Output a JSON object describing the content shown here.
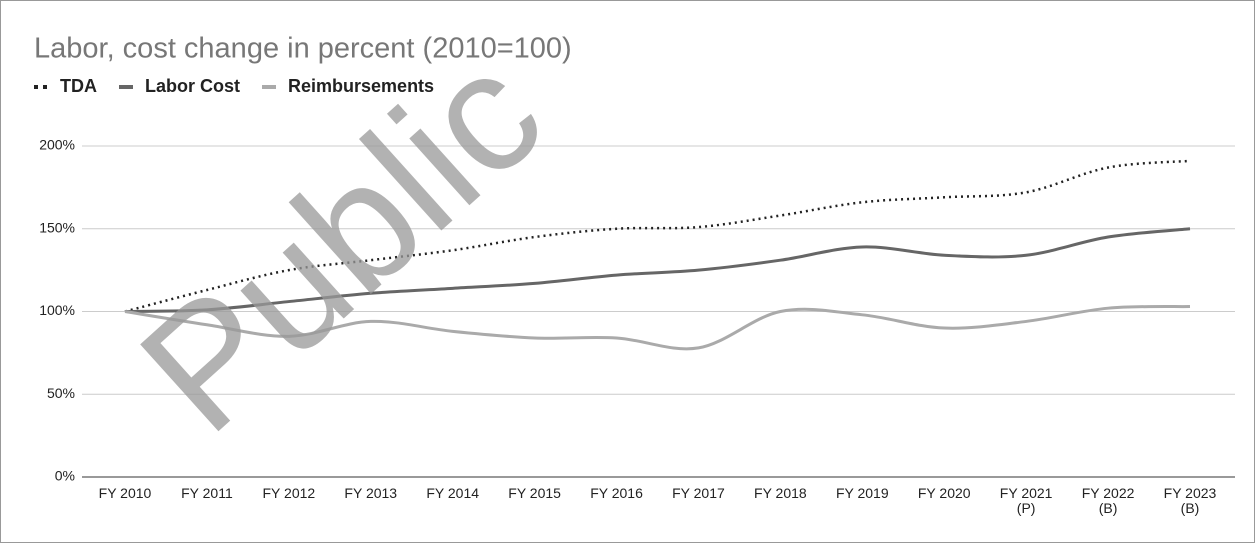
{
  "watermark": "Public",
  "chart_data": {
    "type": "line",
    "title": "Labor, cost change in percent (2010=100)",
    "categories": [
      "FY 2010",
      "FY 2011",
      "FY 2012",
      "FY 2013",
      "FY 2014",
      "FY 2015",
      "FY 2016",
      "FY 2017",
      "FY 2018",
      "FY 2019",
      "FY 2020",
      "FY 2021\n(P)",
      "FY 2022\n(B)",
      "FY 2023\n(B)"
    ],
    "series": [
      {
        "name": "TDA",
        "color": "#222222",
        "dash": "dotted",
        "values": [
          100,
          113,
          125,
          131,
          137,
          145,
          150,
          151,
          158,
          166,
          169,
          172,
          187,
          191
        ]
      },
      {
        "name": "Labor Cost",
        "color": "#666666",
        "values": [
          100,
          101,
          106,
          111,
          114,
          117,
          122,
          125,
          131,
          139,
          134,
          134,
          145,
          150
        ]
      },
      {
        "name": "Reimbursements",
        "color": "#aaaaaa",
        "values": [
          100,
          92,
          85,
          94,
          88,
          84,
          84,
          78,
          100,
          98,
          90,
          94,
          102,
          103
        ]
      }
    ],
    "ylim": [
      0,
      200
    ],
    "yticks": [
      {
        "value": 0,
        "label": "0%"
      },
      {
        "value": 50,
        "label": "50%"
      },
      {
        "value": 100,
        "label": "100%"
      },
      {
        "value": 150,
        "label": "150%"
      },
      {
        "value": 200,
        "label": "200%"
      }
    ],
    "grid": true,
    "legend": "top-left"
  }
}
